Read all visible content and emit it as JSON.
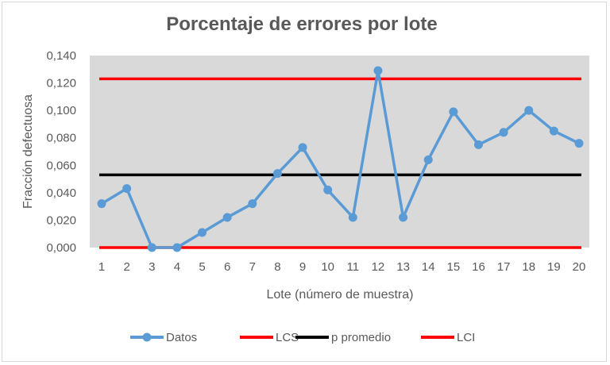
{
  "chart_data": {
    "type": "line",
    "title": "Porcentaje de errores por lote",
    "xlabel": "Lote (número de muestra)",
    "ylabel": "Fracción defectuosa",
    "categories": [
      "1",
      "2",
      "3",
      "4",
      "5",
      "6",
      "7",
      "8",
      "9",
      "10",
      "11",
      "12",
      "13",
      "14",
      "15",
      "16",
      "17",
      "18",
      "19",
      "20"
    ],
    "y_ticks": [
      "0,000",
      "0,020",
      "0,040",
      "0,060",
      "0,080",
      "0,100",
      "0,120",
      "0,140"
    ],
    "ylim": [
      0,
      0.14
    ],
    "grid": false,
    "legend_position": "bottom",
    "series": [
      {
        "name": "Datos",
        "color": "#5b9bd5",
        "marker": "circle",
        "values": [
          0.032,
          0.043,
          0.0,
          0.0,
          0.011,
          0.022,
          0.032,
          0.054,
          0.073,
          0.042,
          0.022,
          0.129,
          0.022,
          0.064,
          0.099,
          0.075,
          0.084,
          0.1,
          0.085,
          0.076
        ]
      },
      {
        "name": "LCS",
        "color": "#ff0000",
        "values": [
          0.123,
          0.123,
          0.123,
          0.123,
          0.123,
          0.123,
          0.123,
          0.123,
          0.123,
          0.123,
          0.123,
          0.123,
          0.123,
          0.123,
          0.123,
          0.123,
          0.123,
          0.123,
          0.123,
          0.123
        ]
      },
      {
        "name": "p promedio",
        "color": "#000000",
        "values": [
          0.053,
          0.053,
          0.053,
          0.053,
          0.053,
          0.053,
          0.053,
          0.053,
          0.053,
          0.053,
          0.053,
          0.053,
          0.053,
          0.053,
          0.053,
          0.053,
          0.053,
          0.053,
          0.053,
          0.053
        ]
      },
      {
        "name": "LCI",
        "color": "#ff0000",
        "values": [
          0.0,
          0.0,
          0.0,
          0.0,
          0.0,
          0.0,
          0.0,
          0.0,
          0.0,
          0.0,
          0.0,
          0.0,
          0.0,
          0.0,
          0.0,
          0.0,
          0.0,
          0.0,
          0.0,
          0.0
        ]
      }
    ],
    "colors": {
      "plot_background": "#d9d9d9",
      "text": "#595959",
      "title": "#595959"
    }
  }
}
